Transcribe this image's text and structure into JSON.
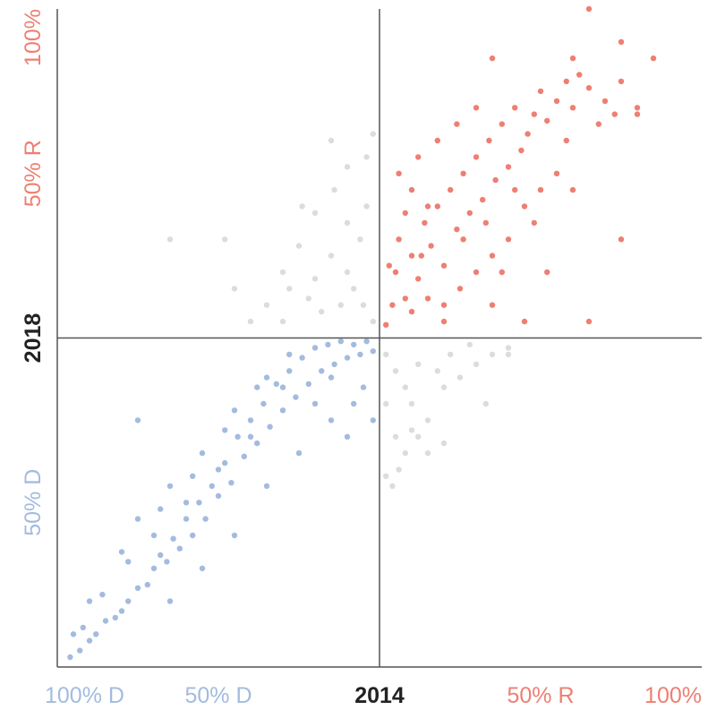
{
  "chart_data": {
    "type": "scatter",
    "title": "",
    "xlabel": "2014",
    "ylabel": "2018",
    "xlim": [
      -1,
      1
    ],
    "ylim": [
      -1,
      1
    ],
    "grid": false,
    "colors": {
      "democrat": "#a3bbdf",
      "republican": "#ee7f72",
      "switched": "#dcdcdc",
      "axis": "#555555",
      "axis_title": "#222222"
    },
    "x_ticks": [
      {
        "value": -1,
        "label": "100% D",
        "party": "democrat"
      },
      {
        "value": -0.5,
        "label": "50% D",
        "party": "democrat"
      },
      {
        "value": 0.5,
        "label": "50% R",
        "party": "republican"
      },
      {
        "value": 1,
        "label": "100%",
        "party": "republican"
      }
    ],
    "y_ticks": [
      {
        "value": 1,
        "label": "100%",
        "party": "republican"
      },
      {
        "value": 0.5,
        "label": "50% R",
        "party": "republican"
      },
      {
        "value": -0.5,
        "label": "50% D",
        "party": "democrat"
      }
    ],
    "series": [
      {
        "party": "democrat",
        "points": [
          [
            -0.96,
            -0.97
          ],
          [
            -0.93,
            -0.95
          ],
          [
            -0.9,
            -0.92
          ],
          [
            -0.88,
            -0.9
          ],
          [
            -0.85,
            -0.86
          ],
          [
            -0.82,
            -0.85
          ],
          [
            -0.8,
            -0.83
          ],
          [
            -0.78,
            -0.8
          ],
          [
            -0.75,
            -0.76
          ],
          [
            -0.72,
            -0.75
          ],
          [
            -0.7,
            -0.7
          ],
          [
            -0.68,
            -0.66
          ],
          [
            -0.66,
            -0.68
          ],
          [
            -0.64,
            -0.61
          ],
          [
            -0.62,
            -0.64
          ],
          [
            -0.6,
            -0.55
          ],
          [
            -0.58,
            -0.6
          ],
          [
            -0.56,
            -0.5
          ],
          [
            -0.54,
            -0.55
          ],
          [
            -0.52,
            -0.45
          ],
          [
            -0.5,
            -0.48
          ],
          [
            -0.48,
            -0.38
          ],
          [
            -0.46,
            -0.44
          ],
          [
            -0.44,
            -0.3
          ],
          [
            -0.42,
            -0.36
          ],
          [
            -0.4,
            -0.25
          ],
          [
            -0.38,
            -0.32
          ],
          [
            -0.36,
            -0.2
          ],
          [
            -0.34,
            -0.27
          ],
          [
            -0.32,
            -0.14
          ],
          [
            -0.3,
            -0.22
          ],
          [
            -0.28,
            -0.1
          ],
          [
            -0.26,
            -0.18
          ],
          [
            -0.24,
            -0.06
          ],
          [
            -0.22,
            -0.14
          ],
          [
            -0.2,
            -0.03
          ],
          [
            -0.18,
            -0.1
          ],
          [
            -0.16,
            -0.02
          ],
          [
            -0.14,
            -0.08
          ],
          [
            -0.12,
            -0.01
          ],
          [
            -0.1,
            -0.06
          ],
          [
            -0.08,
            -0.02
          ],
          [
            -0.06,
            -0.05
          ],
          [
            -0.04,
            -0.01
          ],
          [
            -0.02,
            -0.04
          ],
          [
            -0.75,
            -0.55
          ],
          [
            -0.65,
            -0.45
          ],
          [
            -0.55,
            -0.35
          ],
          [
            -0.45,
            -0.22
          ],
          [
            -0.35,
            -0.12
          ],
          [
            -0.8,
            -0.65
          ],
          [
            -0.7,
            -0.6
          ],
          [
            -0.6,
            -0.5
          ],
          [
            -0.5,
            -0.4
          ],
          [
            -0.4,
            -0.3
          ],
          [
            -0.3,
            -0.15
          ],
          [
            -0.2,
            -0.2
          ],
          [
            -0.15,
            -0.25
          ],
          [
            -0.1,
            -0.3
          ],
          [
            -0.25,
            -0.35
          ],
          [
            -0.35,
            -0.45
          ],
          [
            -0.45,
            -0.6
          ],
          [
            -0.55,
            -0.7
          ],
          [
            -0.65,
            -0.8
          ],
          [
            -0.15,
            -0.12
          ],
          [
            -0.05,
            -0.15
          ],
          [
            -0.08,
            -0.2
          ],
          [
            -0.02,
            -0.25
          ],
          [
            -0.28,
            -0.05
          ],
          [
            -0.38,
            -0.15
          ],
          [
            -0.48,
            -0.28
          ],
          [
            -0.58,
            -0.42
          ],
          [
            -0.68,
            -0.52
          ],
          [
            -0.78,
            -0.68
          ],
          [
            -0.86,
            -0.78
          ],
          [
            -0.9,
            -0.8
          ],
          [
            -0.92,
            -0.88
          ],
          [
            -0.95,
            -0.9
          ],
          [
            -0.75,
            -0.25
          ]
        ]
      },
      {
        "party": "republican",
        "points": [
          [
            0.02,
            0.04
          ],
          [
            0.04,
            0.1
          ],
          [
            0.05,
            0.2
          ],
          [
            0.06,
            0.3
          ],
          [
            0.08,
            0.12
          ],
          [
            0.1,
            0.25
          ],
          [
            0.12,
            0.18
          ],
          [
            0.14,
            0.35
          ],
          [
            0.16,
            0.28
          ],
          [
            0.18,
            0.4
          ],
          [
            0.2,
            0.22
          ],
          [
            0.22,
            0.45
          ],
          [
            0.24,
            0.33
          ],
          [
            0.26,
            0.5
          ],
          [
            0.28,
            0.38
          ],
          [
            0.3,
            0.55
          ],
          [
            0.32,
            0.42
          ],
          [
            0.34,
            0.6
          ],
          [
            0.36,
            0.48
          ],
          [
            0.38,
            0.65
          ],
          [
            0.4,
            0.52
          ],
          [
            0.42,
            0.7
          ],
          [
            0.44,
            0.57
          ],
          [
            0.46,
            0.62
          ],
          [
            0.48,
            0.68
          ],
          [
            0.5,
            0.75
          ],
          [
            0.52,
            0.66
          ],
          [
            0.55,
            0.72
          ],
          [
            0.58,
            0.78
          ],
          [
            0.6,
            0.7
          ],
          [
            0.62,
            0.8
          ],
          [
            0.65,
            0.76
          ],
          [
            0.7,
            0.72
          ],
          [
            0.75,
            0.78
          ],
          [
            0.1,
            0.08
          ],
          [
            0.15,
            0.12
          ],
          [
            0.2,
            0.1
          ],
          [
            0.25,
            0.15
          ],
          [
            0.3,
            0.2
          ],
          [
            0.35,
            0.25
          ],
          [
            0.4,
            0.3
          ],
          [
            0.45,
            0.4
          ],
          [
            0.5,
            0.45
          ],
          [
            0.55,
            0.5
          ],
          [
            0.06,
            0.5
          ],
          [
            0.12,
            0.55
          ],
          [
            0.18,
            0.6
          ],
          [
            0.24,
            0.65
          ],
          [
            0.1,
            0.45
          ],
          [
            0.3,
            0.7
          ],
          [
            0.2,
            0.05
          ],
          [
            0.35,
            0.1
          ],
          [
            0.45,
            0.05
          ],
          [
            0.65,
            0.05
          ],
          [
            0.52,
            0.2
          ],
          [
            0.08,
            0.38
          ],
          [
            0.03,
            0.22
          ],
          [
            0.35,
            0.85
          ],
          [
            0.6,
            0.85
          ],
          [
            0.33,
            0.35
          ],
          [
            0.42,
            0.45
          ],
          [
            0.38,
            0.2
          ],
          [
            0.15,
            0.4
          ],
          [
            0.26,
            0.3
          ],
          [
            0.13,
            0.25
          ],
          [
            0.48,
            0.35
          ],
          [
            0.58,
            0.6
          ],
          [
            0.68,
            0.65
          ],
          [
            0.6,
            0.45
          ],
          [
            0.75,
            0.3
          ],
          [
            0.8,
            0.7
          ],
          [
            0.85,
            0.85
          ],
          [
            0.75,
            0.9
          ],
          [
            0.65,
            1.0
          ],
          [
            0.8,
            0.68
          ],
          [
            0.73,
            0.68
          ]
        ]
      },
      {
        "party": "switched",
        "points": [
          [
            -0.02,
            0.05
          ],
          [
            -0.05,
            0.1
          ],
          [
            -0.08,
            0.15
          ],
          [
            -0.1,
            0.2
          ],
          [
            -0.12,
            0.1
          ],
          [
            -0.15,
            0.25
          ],
          [
            -0.18,
            0.08
          ],
          [
            -0.2,
            0.18
          ],
          [
            -0.22,
            0.12
          ],
          [
            -0.25,
            0.28
          ],
          [
            -0.28,
            0.15
          ],
          [
            -0.3,
            0.05
          ],
          [
            -0.06,
            0.3
          ],
          [
            -0.04,
            0.4
          ],
          [
            -0.1,
            0.35
          ],
          [
            -0.2,
            0.38
          ],
          [
            -0.3,
            0.2
          ],
          [
            -0.35,
            0.1
          ],
          [
            -0.4,
            0.05
          ],
          [
            -0.14,
            0.45
          ],
          [
            -0.24,
            0.4
          ],
          [
            -0.04,
            0.55
          ],
          [
            -0.15,
            0.6
          ],
          [
            -0.45,
            0.15
          ],
          [
            -0.65,
            0.3
          ],
          [
            -0.48,
            0.3
          ],
          [
            -0.02,
            0.62
          ],
          [
            -0.1,
            0.52
          ],
          [
            0.02,
            -0.05
          ],
          [
            0.05,
            -0.1
          ],
          [
            0.08,
            -0.15
          ],
          [
            0.1,
            -0.2
          ],
          [
            0.12,
            -0.08
          ],
          [
            0.15,
            -0.25
          ],
          [
            0.18,
            -0.1
          ],
          [
            0.2,
            -0.15
          ],
          [
            0.22,
            -0.05
          ],
          [
            0.25,
            -0.12
          ],
          [
            0.28,
            -0.02
          ],
          [
            0.3,
            -0.08
          ],
          [
            0.05,
            -0.3
          ],
          [
            0.08,
            -0.35
          ],
          [
            0.1,
            -0.28
          ],
          [
            0.04,
            -0.45
          ],
          [
            0.15,
            -0.35
          ],
          [
            0.02,
            -0.2
          ],
          [
            0.35,
            -0.05
          ],
          [
            0.4,
            -0.03
          ],
          [
            0.2,
            -0.32
          ],
          [
            0.33,
            -0.2
          ],
          [
            0.4,
            -0.05
          ],
          [
            0.02,
            -0.42
          ],
          [
            0.12,
            -0.3
          ],
          [
            0.06,
            -0.4
          ]
        ]
      }
    ]
  }
}
